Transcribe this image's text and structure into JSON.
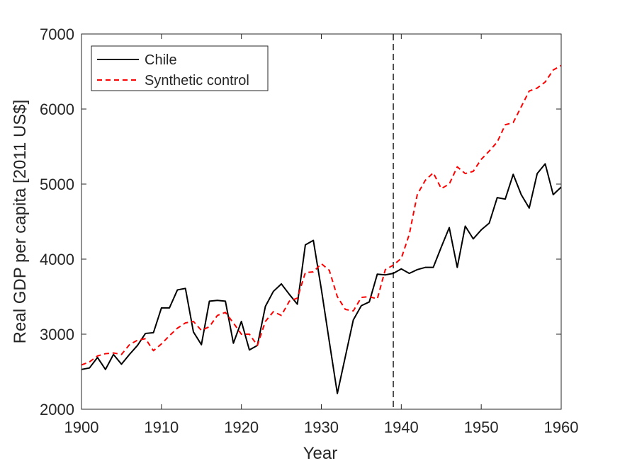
{
  "chart_data": {
    "type": "line",
    "title": "",
    "xlabel": "Year",
    "ylabel": "Real GDP per capita [2011 US$]",
    "xlim": [
      1900,
      1960
    ],
    "ylim": [
      2000,
      7000
    ],
    "x_ticks": [
      1900,
      1910,
      1920,
      1930,
      1940,
      1950,
      1960
    ],
    "y_ticks": [
      2000,
      3000,
      4000,
      5000,
      6000,
      7000
    ],
    "x_tick_labels": [
      "1900",
      "1910",
      "1920",
      "1930",
      "1940",
      "1950",
      "1960"
    ],
    "y_tick_labels": [
      "2000",
      "3000",
      "4000",
      "5000",
      "6000",
      "7000"
    ],
    "grid": false,
    "legend_position": "top-left",
    "vertical_line": {
      "x": 1939,
      "style": "dashed",
      "color": "#000000"
    },
    "x": [
      1900,
      1901,
      1902,
      1903,
      1904,
      1905,
      1906,
      1907,
      1908,
      1909,
      1910,
      1911,
      1912,
      1913,
      1914,
      1915,
      1916,
      1917,
      1918,
      1919,
      1920,
      1921,
      1922,
      1923,
      1924,
      1925,
      1926,
      1927,
      1928,
      1929,
      1930,
      1931,
      1932,
      1933,
      1934,
      1935,
      1936,
      1937,
      1938,
      1939,
      1940,
      1941,
      1942,
      1943,
      1944,
      1945,
      1946,
      1947,
      1948,
      1949,
      1950,
      1951,
      1952,
      1953,
      1954,
      1955,
      1956,
      1957,
      1958,
      1959,
      1960
    ],
    "series": [
      {
        "name": "Chile",
        "color": "#000000",
        "style": "solid",
        "values": [
          2530,
          2550,
          2690,
          2530,
          2730,
          2600,
          2730,
          2850,
          3010,
          3020,
          3350,
          3350,
          3590,
          3610,
          3030,
          2860,
          3440,
          3450,
          3440,
          2880,
          3170,
          2790,
          2850,
          3370,
          3570,
          3670,
          3530,
          3400,
          4190,
          4250,
          3600,
          2900,
          2210,
          2700,
          3190,
          3380,
          3430,
          3800,
          3790,
          3810,
          3870,
          3810,
          3860,
          3890,
          3890,
          4160,
          4420,
          3890,
          4440,
          4270,
          4390,
          4480,
          4820,
          4800,
          5130,
          4860,
          4680,
          5140,
          5270,
          4860,
          4960
        ]
      },
      {
        "name": "Synthetic control",
        "color": "#ff0000",
        "style": "dashed",
        "values": [
          2590,
          2630,
          2710,
          2740,
          2750,
          2730,
          2860,
          2920,
          2940,
          2780,
          2870,
          2980,
          3080,
          3150,
          3170,
          3050,
          3100,
          3250,
          3290,
          3150,
          3000,
          3000,
          2850,
          3170,
          3300,
          3250,
          3440,
          3480,
          3820,
          3830,
          3940,
          3850,
          3500,
          3330,
          3310,
          3490,
          3500,
          3470,
          3860,
          3920,
          4010,
          4330,
          4860,
          5050,
          5150,
          4940,
          5000,
          5230,
          5140,
          5170,
          5330,
          5440,
          5560,
          5790,
          5820,
          6030,
          6240,
          6280,
          6360,
          6520,
          6580
        ]
      }
    ]
  }
}
